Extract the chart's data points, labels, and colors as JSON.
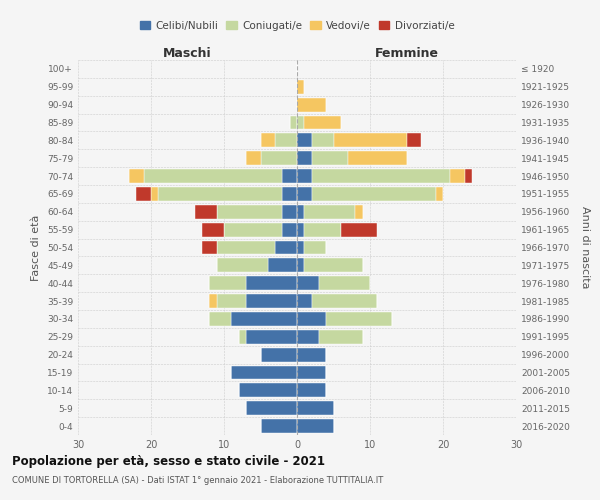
{
  "age_groups": [
    "0-4",
    "5-9",
    "10-14",
    "15-19",
    "20-24",
    "25-29",
    "30-34",
    "35-39",
    "40-44",
    "45-49",
    "50-54",
    "55-59",
    "60-64",
    "65-69",
    "70-74",
    "75-79",
    "80-84",
    "85-89",
    "90-94",
    "95-99",
    "100+"
  ],
  "birth_years": [
    "2016-2020",
    "2011-2015",
    "2006-2010",
    "2001-2005",
    "1996-2000",
    "1991-1995",
    "1986-1990",
    "1981-1985",
    "1976-1980",
    "1971-1975",
    "1966-1970",
    "1961-1965",
    "1956-1960",
    "1951-1955",
    "1946-1950",
    "1941-1945",
    "1936-1940",
    "1931-1935",
    "1926-1930",
    "1921-1925",
    "≤ 1920"
  ],
  "maschi": {
    "celibi": [
      5,
      7,
      8,
      9,
      5,
      7,
      9,
      7,
      7,
      4,
      3,
      2,
      2,
      2,
      2,
      0,
      0,
      0,
      0,
      0,
      0
    ],
    "coniugati": [
      0,
      0,
      0,
      0,
      0,
      1,
      3,
      4,
      5,
      7,
      8,
      8,
      9,
      17,
      19,
      5,
      3,
      1,
      0,
      0,
      0
    ],
    "vedovi": [
      0,
      0,
      0,
      0,
      0,
      0,
      0,
      1,
      0,
      0,
      0,
      0,
      0,
      1,
      2,
      2,
      2,
      0,
      0,
      0,
      0
    ],
    "divorziati": [
      0,
      0,
      0,
      0,
      0,
      0,
      0,
      0,
      0,
      0,
      2,
      3,
      3,
      2,
      0,
      0,
      0,
      0,
      0,
      0,
      0
    ]
  },
  "femmine": {
    "nubili": [
      5,
      5,
      4,
      4,
      4,
      3,
      4,
      2,
      3,
      1,
      1,
      1,
      1,
      2,
      2,
      2,
      2,
      0,
      0,
      0,
      0
    ],
    "coniugate": [
      0,
      0,
      0,
      0,
      0,
      6,
      9,
      9,
      7,
      8,
      3,
      5,
      7,
      17,
      19,
      5,
      3,
      1,
      0,
      0,
      0
    ],
    "vedove": [
      0,
      0,
      0,
      0,
      0,
      0,
      0,
      0,
      0,
      0,
      0,
      0,
      1,
      1,
      2,
      8,
      10,
      5,
      4,
      1,
      0
    ],
    "divorziate": [
      0,
      0,
      0,
      0,
      0,
      0,
      0,
      0,
      0,
      0,
      0,
      5,
      0,
      0,
      1,
      0,
      2,
      0,
      0,
      0,
      0
    ]
  },
  "colors": {
    "celibi": "#4472a8",
    "coniugati": "#c5d8a0",
    "vedovi": "#f5c661",
    "divorziati": "#c0392b"
  },
  "xlim": 30,
  "title": "Popolazione per età, sesso e stato civile - 2021",
  "subtitle": "COMUNE DI TORTORELLA (SA) - Dati ISTAT 1° gennaio 2021 - Elaborazione TUTTITALIA.IT",
  "ylabel_left": "Fasce di età",
  "ylabel_right": "Anni di nascita",
  "xlabel_maschi": "Maschi",
  "xlabel_femmine": "Femmine",
  "legend_labels": [
    "Celibi/Nubili",
    "Coniugati/e",
    "Vedovi/e",
    "Divorziati/e"
  ],
  "bg_color": "#f5f5f5"
}
